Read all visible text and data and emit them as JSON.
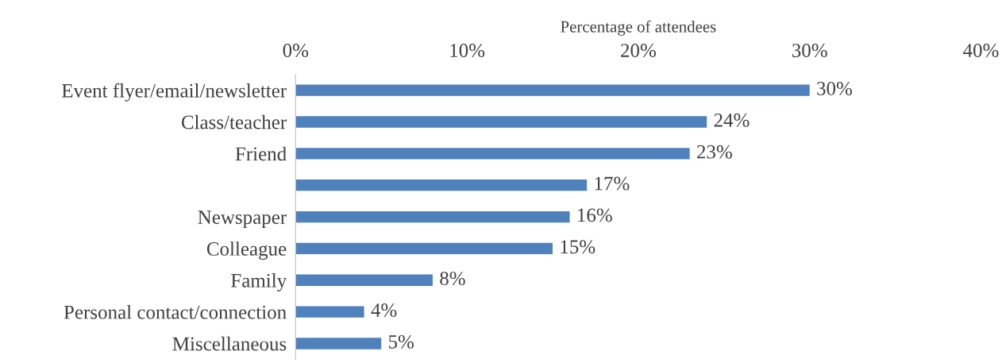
{
  "chart_data": {
    "type": "bar",
    "orientation": "horizontal",
    "xlabel": "Percentage of attendees",
    "categories": [
      "Event flyer/email/newsletter",
      "Class/teacher",
      "Friend",
      null,
      "Newspaper",
      "Colleague",
      "Family",
      "Personal contact/connection",
      "Miscellaneous"
    ],
    "values": [
      30,
      24,
      23,
      17,
      16,
      15,
      8,
      4,
      5
    ],
    "value_labels": [
      "30%",
      "24%",
      "23%",
      "17%",
      "16%",
      "15%",
      "8%",
      "4%",
      "5%"
    ],
    "color": "#4f81bd",
    "xlim": [
      0,
      40
    ],
    "xticks": [
      {
        "value": 0,
        "label": "0%"
      },
      {
        "value": 10,
        "label": "10%"
      },
      {
        "value": 20,
        "label": "20%"
      },
      {
        "value": 30,
        "label": "30%"
      },
      {
        "value": 40,
        "label": "40%"
      }
    ],
    "grid": false,
    "legend": false
  }
}
